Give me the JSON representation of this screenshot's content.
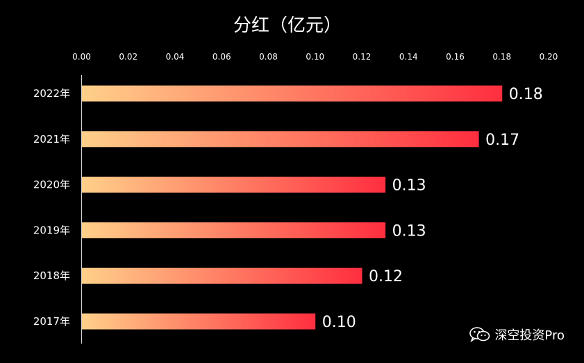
{
  "chart_data": {
    "type": "bar",
    "orientation": "horizontal",
    "title": "分红（亿元）",
    "categories": [
      "2022年",
      "2021年",
      "2020年",
      "2019年",
      "2018年",
      "2017年"
    ],
    "values": [
      0.18,
      0.17,
      0.13,
      0.13,
      0.12,
      0.1
    ],
    "value_labels": [
      "0.18",
      "0.17",
      "0.13",
      "0.13",
      "0.12",
      "0.10"
    ],
    "x_ticks": [
      "0.00",
      "0.02",
      "0.04",
      "0.06",
      "0.08",
      "0.10",
      "0.12",
      "0.14",
      "0.16",
      "0.18",
      "0.20"
    ],
    "xlim": [
      0,
      0.2
    ],
    "x_axis_position": "top",
    "grid": false,
    "bar_gradient": [
      "#ffd08a",
      "#ff2e3f"
    ]
  },
  "watermark": {
    "text": "深空投资Pro",
    "icon": "wechat-icon"
  }
}
